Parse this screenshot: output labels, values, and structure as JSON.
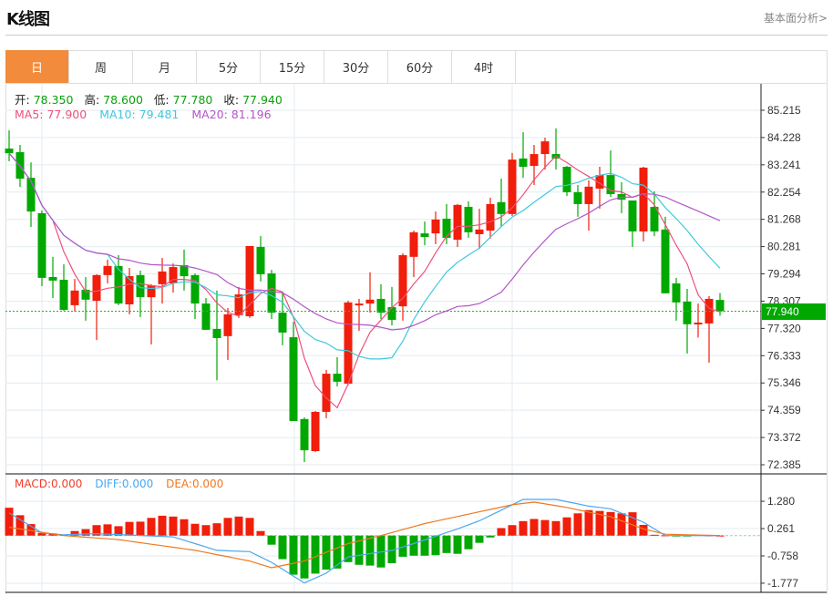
{
  "header": {
    "title": "K线图",
    "link": "基本面分析>"
  },
  "tabs": [
    "日",
    "周",
    "月",
    "5分",
    "15分",
    "30分",
    "60分",
    "4时"
  ],
  "active_tab": 0,
  "ohlc": {
    "open_label": "开:",
    "open": "78.350",
    "high_label": "高:",
    "high": "78.600",
    "low_label": "低:",
    "low": "77.780",
    "close_label": "收:",
    "close": "77.940"
  },
  "ma": {
    "ma5_label": "MA5: 77.900",
    "ma10_label": "MA10: 79.481",
    "ma20_label": "MA20: 81.196"
  },
  "macd_legend": {
    "macd": "MACD:0.000",
    "diff": "DIFF:0.000",
    "dea": "DEA:0.000"
  },
  "colors": {
    "up": "#f01e0a",
    "down": "#02a802",
    "ma5": "#f0507a",
    "ma10": "#3ec8dc",
    "ma20": "#b455c8",
    "diff": "#4aa8f0",
    "dea": "#f07820",
    "tab_active": "#f28c3c"
  },
  "chart_data": {
    "type": "candlestick",
    "price_ticks": [
      "85.215",
      "84.228",
      "83.241",
      "82.254",
      "81.268",
      "80.281",
      "79.294",
      "78.307",
      "77.320",
      "76.333",
      "75.346",
      "74.359",
      "73.372",
      "72.385"
    ],
    "price_range": [
      72.385,
      85.215
    ],
    "current_price": "77.940",
    "candles_ohlc": [
      [
        83.83,
        84.49,
        83.37,
        83.66
      ],
      [
        83.7,
        83.96,
        82.44,
        82.74
      ],
      [
        82.77,
        83.33,
        80.99,
        81.55
      ],
      [
        81.49,
        81.59,
        78.85,
        79.15
      ],
      [
        79.18,
        79.91,
        78.42,
        79.05
      ],
      [
        79.08,
        79.64,
        77.96,
        77.99
      ],
      [
        78.16,
        79.11,
        77.93,
        78.69
      ],
      [
        78.72,
        79.18,
        77.6,
        78.36
      ],
      [
        78.32,
        79.28,
        76.9,
        79.25
      ],
      [
        79.25,
        79.81,
        78.95,
        79.58
      ],
      [
        79.58,
        79.97,
        78.16,
        78.22
      ],
      [
        78.19,
        79.51,
        77.83,
        79.21
      ],
      [
        79.25,
        79.41,
        77.73,
        78.45
      ],
      [
        78.45,
        78.92,
        76.74,
        78.88
      ],
      [
        78.92,
        79.87,
        78.22,
        79.38
      ],
      [
        78.95,
        79.67,
        78.62,
        79.54
      ],
      [
        79.61,
        80.17,
        78.69,
        79.21
      ],
      [
        79.25,
        79.31,
        77.66,
        78.22
      ],
      [
        78.22,
        78.42,
        77.27,
        77.27
      ],
      [
        77.3,
        78.69,
        75.44,
        76.97
      ],
      [
        77.04,
        78.06,
        76.18,
        77.83
      ],
      [
        77.8,
        78.82,
        77.7,
        78.55
      ],
      [
        77.76,
        80.3,
        77.7,
        80.3
      ],
      [
        80.27,
        80.66,
        79.02,
        79.28
      ],
      [
        79.31,
        79.44,
        77.66,
        77.89
      ],
      [
        77.89,
        78.65,
        76.71,
        77.17
      ],
      [
        77.0,
        77.56,
        73.97,
        73.97
      ],
      [
        74.04,
        74.1,
        72.48,
        72.91
      ],
      [
        72.88,
        74.33,
        72.85,
        74.3
      ],
      [
        74.3,
        75.82,
        74.07,
        75.68
      ],
      [
        75.68,
        76.28,
        75.22,
        75.39
      ],
      [
        75.32,
        78.32,
        75.26,
        78.26
      ],
      [
        78.16,
        78.39,
        77.23,
        78.22
      ],
      [
        78.22,
        79.35,
        77.89,
        78.36
      ],
      [
        78.39,
        78.92,
        77.66,
        77.89
      ],
      [
        78.09,
        78.82,
        77.43,
        77.63
      ],
      [
        78.12,
        80.04,
        77.6,
        79.97
      ],
      [
        79.91,
        80.86,
        79.18,
        80.8
      ],
      [
        80.76,
        81.19,
        80.33,
        80.63
      ],
      [
        80.76,
        81.55,
        80.37,
        81.26
      ],
      [
        81.29,
        81.82,
        80.37,
        80.6
      ],
      [
        80.53,
        81.82,
        80.27,
        81.79
      ],
      [
        81.72,
        81.92,
        80.6,
        80.8
      ],
      [
        80.73,
        81.65,
        80.2,
        80.9
      ],
      [
        80.86,
        82.05,
        80.57,
        81.82
      ],
      [
        81.89,
        82.74,
        80.99,
        81.46
      ],
      [
        81.46,
        83.67,
        81.39,
        83.43
      ],
      [
        83.47,
        84.42,
        82.77,
        83.17
      ],
      [
        83.2,
        83.96,
        82.51,
        83.63
      ],
      [
        83.63,
        84.22,
        83.07,
        84.09
      ],
      [
        83.63,
        84.56,
        83.07,
        83.47
      ],
      [
        83.17,
        83.2,
        82.11,
        82.25
      ],
      [
        82.25,
        82.51,
        81.36,
        81.82
      ],
      [
        81.82,
        82.68,
        80.86,
        82.45
      ],
      [
        82.38,
        83.17,
        81.65,
        82.87
      ],
      [
        82.87,
        83.76,
        82.08,
        82.18
      ],
      [
        82.18,
        82.61,
        81.49,
        81.98
      ],
      [
        81.95,
        81.95,
        80.27,
        80.83
      ],
      [
        80.83,
        83.17,
        80.47,
        83.14
      ],
      [
        81.72,
        82.28,
        80.66,
        80.83
      ],
      [
        80.9,
        81.36,
        78.59,
        78.59
      ],
      [
        78.95,
        79.15,
        77.6,
        78.26
      ],
      [
        78.29,
        78.75,
        76.41,
        77.47
      ],
      [
        77.47,
        78.22,
        76.99,
        77.53
      ],
      [
        77.5,
        78.49,
        76.08,
        78.39
      ],
      [
        78.35,
        78.6,
        77.78,
        77.94
      ]
    ],
    "macd_ticks": [
      "1.280",
      "0.261",
      "-0.758",
      "-1.777"
    ],
    "macd_hist": [
      1.04,
      0.76,
      0.43,
      0.1,
      0.08,
      0.03,
      0.17,
      0.24,
      0.39,
      0.42,
      0.35,
      0.51,
      0.52,
      0.66,
      0.74,
      0.71,
      0.61,
      0.44,
      0.39,
      0.46,
      0.66,
      0.71,
      0.66,
      0.17,
      -0.34,
      -0.88,
      -1.46,
      -1.6,
      -1.42,
      -1.27,
      -1.23,
      -0.99,
      -1.09,
      -1.12,
      -1.19,
      -1.03,
      -0.79,
      -0.75,
      -0.75,
      -0.73,
      -0.65,
      -0.68,
      -0.51,
      -0.27,
      -0.07,
      0.28,
      0.39,
      0.54,
      0.62,
      0.58,
      0.54,
      0.68,
      0.83,
      0.95,
      0.92,
      0.88,
      0.83,
      0.87,
      0.4,
      0.03,
      0.01,
      -0.03,
      -0.02,
      0.02,
      0.01,
      0.0
    ],
    "diff_keypoints": [
      [
        0,
        0.85
      ],
      [
        3,
        0.1
      ],
      [
        5,
        0.03
      ],
      [
        8,
        0.07
      ],
      [
        10,
        0.04
      ],
      [
        15,
        -0.05
      ],
      [
        19,
        -0.55
      ],
      [
        22,
        -0.6
      ],
      [
        24,
        -1.0
      ],
      [
        27,
        -1.77
      ],
      [
        29,
        -1.4
      ],
      [
        31,
        -0.8
      ],
      [
        35,
        -0.55
      ],
      [
        37,
        -0.3
      ],
      [
        41,
        0.25
      ],
      [
        43,
        0.55
      ],
      [
        45,
        0.95
      ],
      [
        47,
        1.35
      ],
      [
        50,
        1.35
      ],
      [
        53,
        1.1
      ],
      [
        55,
        1.0
      ],
      [
        58,
        0.5
      ],
      [
        60,
        0.0
      ],
      [
        65,
        0.0
      ]
    ],
    "dea_keypoints": [
      [
        0,
        0.31
      ],
      [
        5,
        0.0
      ],
      [
        10,
        -0.15
      ],
      [
        17,
        -0.55
      ],
      [
        22,
        -0.95
      ],
      [
        24,
        -1.2
      ],
      [
        27,
        -0.95
      ],
      [
        31,
        -0.3
      ],
      [
        34,
        0.0
      ],
      [
        38,
        0.45
      ],
      [
        42,
        0.8
      ],
      [
        46,
        1.15
      ],
      [
        48,
        1.25
      ],
      [
        51,
        1.05
      ],
      [
        55,
        0.7
      ],
      [
        58,
        0.25
      ],
      [
        60,
        0.05
      ],
      [
        65,
        0.0
      ]
    ]
  }
}
